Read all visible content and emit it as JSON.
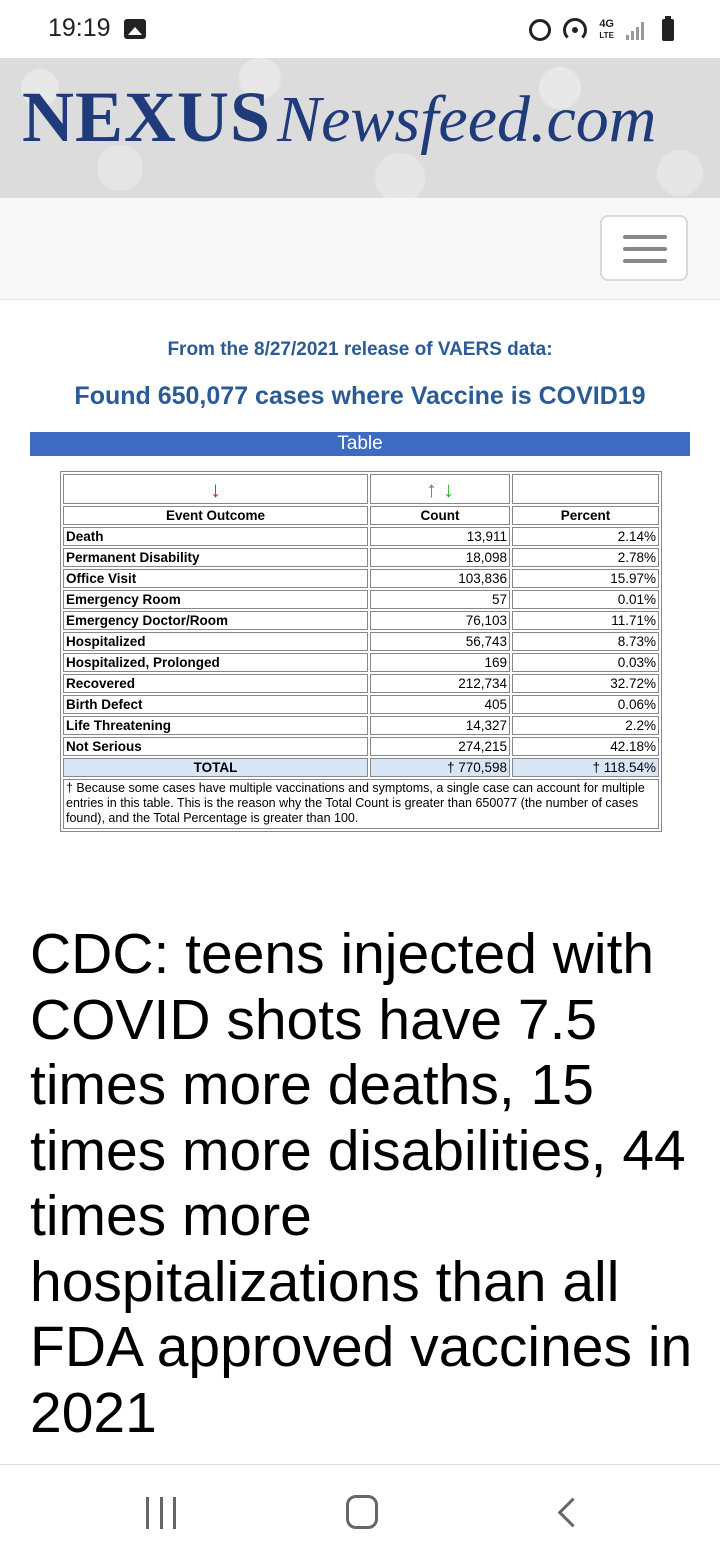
{
  "status_bar": {
    "time": "19:19",
    "network": "4G",
    "network_sub": "LTE"
  },
  "banner": {
    "logo_nexus": "NEXUS",
    "logo_newsfeed": "Newsfeed.com"
  },
  "content": {
    "release_line": "From the 8/27/2021 release of VAERS data:",
    "found_line": "Found 650,077 cases where Vaccine is COVID19",
    "table_bar_label": "Table"
  },
  "vaers_table": {
    "arrows": {
      "outcome": "↓",
      "count_up": "↑",
      "count_down": "↓"
    },
    "headers": {
      "outcome": "Event Outcome",
      "count": "Count",
      "percent": "Percent"
    },
    "rows": [
      {
        "outcome": "Death",
        "count": "13,911",
        "percent": "2.14%"
      },
      {
        "outcome": "Permanent Disability",
        "count": "18,098",
        "percent": "2.78%"
      },
      {
        "outcome": "Office Visit",
        "count": "103,836",
        "percent": "15.97%"
      },
      {
        "outcome": "Emergency Room",
        "count": "57",
        "percent": "0.01%"
      },
      {
        "outcome": "Emergency Doctor/Room",
        "count": "76,103",
        "percent": "11.71%"
      },
      {
        "outcome": "Hospitalized",
        "count": "56,743",
        "percent": "8.73%"
      },
      {
        "outcome": "Hospitalized, Prolonged",
        "count": "169",
        "percent": "0.03%"
      },
      {
        "outcome": "Recovered",
        "count": "212,734",
        "percent": "32.72%"
      },
      {
        "outcome": "Birth Defect",
        "count": "405",
        "percent": "0.06%"
      },
      {
        "outcome": "Life Threatening",
        "count": "14,327",
        "percent": "2.2%"
      },
      {
        "outcome": "Not Serious",
        "count": "274,215",
        "percent": "42.18%"
      }
    ],
    "total": {
      "label": "TOTAL",
      "count": "† 770,598",
      "percent": "† 118.54%"
    },
    "footnote": "† Because some cases have multiple vaccinations and symptoms, a single case can account for multiple entries in this table. This is the reason why the Total Count is greater than 650077 (the number of cases found), and the Total Percentage is greater than 100."
  },
  "headline": "CDC: teens injected with COVID shots have 7.5 times more deaths, 15 times more disabilities, 44 times more hospitalizations than all FDA approved vaccines in 2021",
  "colors": {
    "brand_blue": "#1f3b7a",
    "link_blue": "#2a5b95",
    "table_bar": "#3e6bc1",
    "total_row": "#d8e6f6"
  }
}
